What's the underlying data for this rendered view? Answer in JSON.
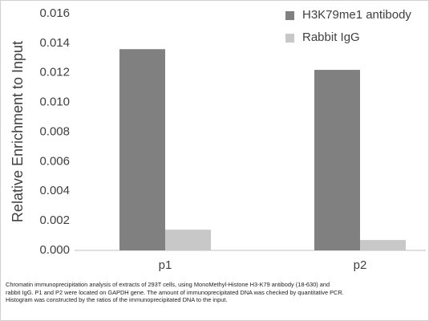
{
  "chart_data": {
    "type": "bar",
    "y_label": "Relative Enrichment to Input",
    "categories": [
      "p1",
      "p2"
    ],
    "series": [
      {
        "name": "H3K79me1 antibody",
        "color": "#808080",
        "values": [
          0.0136,
          0.0122
        ]
      },
      {
        "name": "Rabbit IgG",
        "color": "#c8c8c8",
        "values": [
          0.0014,
          0.0007
        ]
      }
    ],
    "ylim": [
      0,
      0.016
    ],
    "yticks": [
      {
        "value": 0,
        "label": "0.000"
      },
      0.002,
      0.004,
      0.006,
      0.008,
      {
        "value": 0.01,
        "label": "0.010"
      },
      0.012,
      0.014,
      0.016
    ],
    "grid": false,
    "legend": "top-right",
    "caption": [
      "Chromatin immunoprecipitation analysis of extracts of 293T cells, using MonoMethyl-Histone H3-K79 antibody (18-630) and",
      "rabbit IgG. P1 and P2 were located on GAPDH gene. The amount of immunoprecipitated DNA was checked by quantitative PCR.",
      "Histogram was constructed by the ratios of the immunoprecipitated DNA to the input."
    ]
  }
}
